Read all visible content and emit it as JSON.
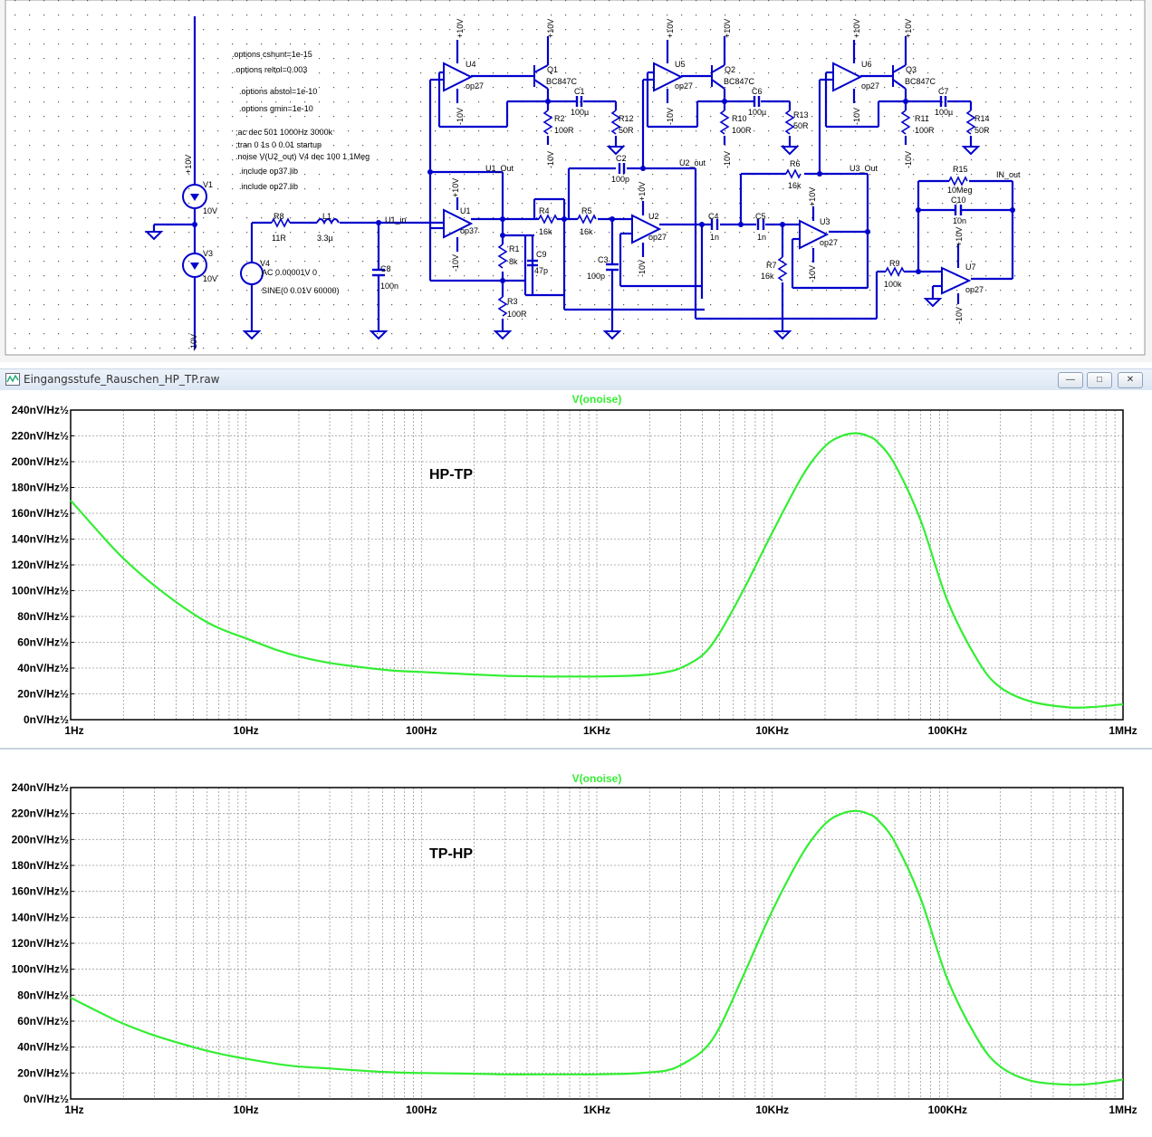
{
  "schematic": {
    "directives": [
      ".options cshunt=1e-15",
      ".options reltol=0.003",
      ".options abstol=1e-10",
      ".options gmin=1e-10",
      ";ac dec 501 1000Hz 3000k",
      ";tran 0 1s 0 0.01 startup",
      ".noise V(U2_out) V4 dec 100 1 1Meg",
      ".include op37.lib",
      ".include op27.lib"
    ],
    "v1": {
      "name": "V1",
      "value": "10V"
    },
    "v3": {
      "name": "V3",
      "value": "10V"
    },
    "v4": {
      "name": "V4",
      "ac": "AC 0.00001V 0",
      "sine": "SINE(0 0.01V 60000)"
    },
    "rail_pos": "+10V",
    "rail_neg": "-10V",
    "r8": {
      "name": "R8",
      "value": "11R"
    },
    "l1": {
      "name": "L1",
      "value": "3.3µ"
    },
    "c8": {
      "name": "C8",
      "value": "100n"
    },
    "u1": {
      "name": "U1",
      "model": "op37"
    },
    "r1": {
      "name": "R1",
      "value": "8k"
    },
    "r3": {
      "name": "R3",
      "value": "100R"
    },
    "c9": {
      "name": "C9",
      "value": "47p"
    },
    "r4": {
      "name": "R4",
      "value": "16k"
    },
    "r5": {
      "name": "R5",
      "value": "16k"
    },
    "c3": {
      "name": "C3",
      "value": "100p"
    },
    "c2": {
      "name": "C2",
      "value": "100p"
    },
    "u2": {
      "name": "U2",
      "model": "op27"
    },
    "c4": {
      "name": "C4",
      "value": "1n"
    },
    "c5": {
      "name": "C5",
      "value": "1n"
    },
    "r6": {
      "name": "R6",
      "value": "16k"
    },
    "r7": {
      "name": "R7",
      "value": "16k"
    },
    "u3": {
      "name": "U3",
      "model": "op27"
    },
    "r9": {
      "name": "R9",
      "value": "100k"
    },
    "r15": {
      "name": "R15",
      "value": "10Meg"
    },
    "c10": {
      "name": "C10",
      "value": "10n"
    },
    "u7": {
      "name": "U7",
      "model": "op27"
    },
    "u4": {
      "name": "U4",
      "model": "op27"
    },
    "u5": {
      "name": "U5",
      "model": "op27"
    },
    "u6": {
      "name": "U6",
      "model": "op27"
    },
    "q1": {
      "name": "Q1",
      "model": "BC847C"
    },
    "q2": {
      "name": "Q2",
      "model": "BC847C"
    },
    "q3": {
      "name": "Q3",
      "model": "BC847C"
    },
    "c1": {
      "name": "C1",
      "value": "100µ"
    },
    "c6": {
      "name": "C6",
      "value": "100µ"
    },
    "c7": {
      "name": "C7",
      "value": "100µ"
    },
    "r2": {
      "name": "R2",
      "value": "100R"
    },
    "r10": {
      "name": "R10",
      "value": "100R"
    },
    "r11": {
      "name": "R11",
      "value": "100R"
    },
    "r12": {
      "name": "R12",
      "value": "50R"
    },
    "r13": {
      "name": "R13",
      "value": "50R"
    },
    "r14": {
      "name": "R14",
      "value": "50R"
    },
    "nets": {
      "u1_in": "U1_in",
      "u1_out": "U1_Out",
      "u2_out": "U2_out",
      "u3_out": "U3_Out",
      "in_out": "IN_out"
    }
  },
  "window": {
    "title": "Eingangsstufe_Rauschen_HP_TP.raw",
    "buttons": {
      "minimize": "—",
      "maximize": "□",
      "close": "✕"
    }
  },
  "colors": {
    "wire": "#0000cc",
    "trace": "#33ee33",
    "grid": "#9a9a9a",
    "frame": "#000000"
  },
  "chart_data": [
    {
      "type": "line",
      "title": "V(onoise)",
      "annotation": "HP-TP",
      "x_scale": "log",
      "xlim": [
        1,
        1000000
      ],
      "ylim": [
        0,
        240
      ],
      "x_ticks": [
        "1Hz",
        "10Hz",
        "100Hz",
        "1KHz",
        "10KHz",
        "100KHz",
        "1MHz"
      ],
      "y_ticks": [
        "0nV/Hz½",
        "20nV/Hz½",
        "40nV/Hz½",
        "60nV/Hz½",
        "80nV/Hz½",
        "100nV/Hz½",
        "120nV/Hz½",
        "140nV/Hz½",
        "160nV/Hz½",
        "180nV/Hz½",
        "200nV/Hz½",
        "220nV/Hz½",
        "240nV/Hz½"
      ],
      "grid": true,
      "x": [
        1,
        1.5,
        2,
        3,
        5,
        7,
        10,
        15,
        20,
        30,
        50,
        70,
        100,
        200,
        300,
        500,
        700,
        1000,
        1500,
        2000,
        2500,
        3000,
        4000,
        5000,
        7000,
        10000,
        15000,
        20000,
        25000,
        30000,
        35000,
        40000,
        50000,
        70000,
        100000,
        150000,
        200000,
        300000,
        500000,
        700000,
        1000000
      ],
      "y": [
        170,
        143,
        125,
        104,
        82,
        71,
        63,
        54,
        49,
        44,
        40,
        38,
        37,
        35,
        34,
        33.5,
        33.5,
        33.5,
        34,
        35,
        37,
        40,
        50,
        67,
        103,
        145,
        190,
        212,
        220,
        222,
        220,
        215,
        198,
        155,
        92,
        45,
        25,
        14,
        9.5,
        10,
        12
      ]
    },
    {
      "type": "line",
      "title": "V(onoise)",
      "annotation": "TP-HP",
      "x_scale": "log",
      "xlim": [
        1,
        1000000
      ],
      "ylim": [
        0,
        240
      ],
      "x_ticks": [
        "1Hz",
        "10Hz",
        "100Hz",
        "1KHz",
        "10KHz",
        "100KHz",
        "1MHz"
      ],
      "y_ticks": [
        "0nV/Hz½",
        "20nV/Hz½",
        "40nV/Hz½",
        "60nV/Hz½",
        "80nV/Hz½",
        "100nV/Hz½",
        "120nV/Hz½",
        "140nV/Hz½",
        "160nV/Hz½",
        "180nV/Hz½",
        "200nV/Hz½",
        "220nV/Hz½",
        "240nV/Hz½"
      ],
      "grid": true,
      "x": [
        1,
        1.5,
        2,
        3,
        5,
        7,
        10,
        15,
        20,
        30,
        50,
        70,
        100,
        200,
        300,
        500,
        700,
        1000,
        1500,
        2000,
        2500,
        3000,
        4000,
        5000,
        7000,
        10000,
        15000,
        20000,
        25000,
        30000,
        35000,
        40000,
        50000,
        70000,
        100000,
        150000,
        200000,
        300000,
        500000,
        700000,
        1000000
      ],
      "y": [
        78,
        66,
        58,
        49,
        40,
        35,
        31,
        27,
        25,
        23.5,
        21.5,
        20.5,
        20,
        19.5,
        19,
        19,
        19,
        19,
        19.5,
        20.5,
        22,
        26,
        37,
        55,
        98,
        145,
        190,
        212,
        220,
        222,
        220,
        215,
        198,
        155,
        92,
        45,
        25,
        14,
        11,
        12,
        15
      ]
    }
  ]
}
